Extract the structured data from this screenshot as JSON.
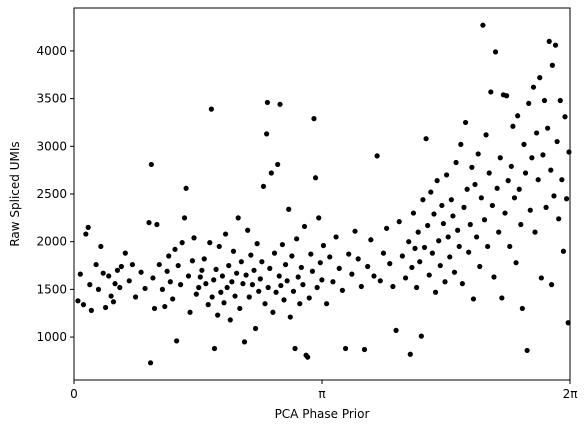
{
  "chart_data": {
    "type": "scatter",
    "title": "",
    "xlabel": "PCA Phase Prior",
    "ylabel": "Raw Spliced UMIs",
    "xlim": [
      0,
      6.283185307
    ],
    "ylim": [
      550,
      4450
    ],
    "x_ticks": [
      {
        "value": 0,
        "label": "0"
      },
      {
        "value": 3.141592654,
        "label": "π"
      },
      {
        "value": 6.283185307,
        "label": "2π"
      }
    ],
    "y_ticks": [
      {
        "value": 1000,
        "label": "1000"
      },
      {
        "value": 1500,
        "label": "1500"
      },
      {
        "value": 2000,
        "label": "2000"
      },
      {
        "value": 2500,
        "label": "2500"
      },
      {
        "value": 3000,
        "label": "3000"
      },
      {
        "value": 3500,
        "label": "3500"
      },
      {
        "value": 4000,
        "label": "4000"
      }
    ],
    "grid": false,
    "marker_color": "#000000",
    "points": [
      [
        0.05,
        1380
      ],
      [
        0.08,
        1660
      ],
      [
        0.12,
        1340
      ],
      [
        0.15,
        2080
      ],
      [
        0.18,
        2150
      ],
      [
        0.2,
        1550
      ],
      [
        0.22,
        1280
      ],
      [
        0.28,
        1760
      ],
      [
        0.31,
        1500
      ],
      [
        0.34,
        1950
      ],
      [
        0.37,
        1670
      ],
      [
        0.4,
        1310
      ],
      [
        0.44,
        1640
      ],
      [
        0.47,
        1430
      ],
      [
        0.5,
        1370
      ],
      [
        0.52,
        1560
      ],
      [
        0.55,
        1700
      ],
      [
        0.58,
        1520
      ],
      [
        0.6,
        1740
      ],
      [
        0.65,
        1880
      ],
      [
        0.7,
        1590
      ],
      [
        0.74,
        1760
      ],
      [
        0.78,
        1420
      ],
      [
        0.85,
        1680
      ],
      [
        0.9,
        1510
      ],
      [
        0.95,
        2200
      ],
      [
        0.97,
        730
      ],
      [
        0.98,
        2810
      ],
      [
        1.0,
        1620
      ],
      [
        1.02,
        1300
      ],
      [
        1.05,
        2180
      ],
      [
        1.08,
        1760
      ],
      [
        1.12,
        1500
      ],
      [
        1.15,
        1320
      ],
      [
        1.18,
        1690
      ],
      [
        1.2,
        1850
      ],
      [
        1.22,
        1580
      ],
      [
        1.25,
        1400
      ],
      [
        1.28,
        1920
      ],
      [
        1.3,
        960
      ],
      [
        1.32,
        1750
      ],
      [
        1.35,
        1550
      ],
      [
        1.37,
        1990
      ],
      [
        1.4,
        2250
      ],
      [
        1.42,
        2560
      ],
      [
        1.45,
        1640
      ],
      [
        1.47,
        1260
      ],
      [
        1.5,
        1800
      ],
      [
        1.52,
        2040
      ],
      [
        1.55,
        1450
      ],
      [
        1.58,
        1520
      ],
      [
        1.6,
        1630
      ],
      [
        1.62,
        1700
      ],
      [
        1.65,
        1820
      ],
      [
        1.67,
        1560
      ],
      [
        1.7,
        1340
      ],
      [
        1.72,
        1990
      ],
      [
        1.74,
        3390
      ],
      [
        1.75,
        1420
      ],
      [
        1.77,
        1600
      ],
      [
        1.78,
        880
      ],
      [
        1.8,
        1710
      ],
      [
        1.82,
        1230
      ],
      [
        1.84,
        1950
      ],
      [
        1.86,
        1470
      ],
      [
        1.88,
        1640
      ],
      [
        1.9,
        1360
      ],
      [
        1.92,
        2080
      ],
      [
        1.94,
        1520
      ],
      [
        1.96,
        1750
      ],
      [
        1.98,
        1180
      ],
      [
        2.0,
        1580
      ],
      [
        2.02,
        1900
      ],
      [
        2.04,
        1430
      ],
      [
        2.06,
        1670
      ],
      [
        2.08,
        2250
      ],
      [
        2.1,
        1300
      ],
      [
        2.12,
        1790
      ],
      [
        2.14,
        1560
      ],
      [
        2.16,
        950
      ],
      [
        2.18,
        1650
      ],
      [
        2.2,
        2120
      ],
      [
        2.22,
        1420
      ],
      [
        2.24,
        1860
      ],
      [
        2.26,
        1550
      ],
      [
        2.28,
        1700
      ],
      [
        2.3,
        1090
      ],
      [
        2.32,
        1980
      ],
      [
        2.34,
        1480
      ],
      [
        2.36,
        1610
      ],
      [
        2.38,
        1790
      ],
      [
        2.4,
        2580
      ],
      [
        2.42,
        1350
      ],
      [
        2.44,
        3130
      ],
      [
        2.45,
        3460
      ],
      [
        2.46,
        1520
      ],
      [
        2.48,
        1720
      ],
      [
        2.5,
        2720
      ],
      [
        2.52,
        1260
      ],
      [
        2.54,
        1880
      ],
      [
        2.56,
        1470
      ],
      [
        2.58,
        2810
      ],
      [
        2.6,
        1640
      ],
      [
        2.61,
        3440
      ],
      [
        2.62,
        1540
      ],
      [
        2.64,
        1970
      ],
      [
        2.66,
        1390
      ],
      [
        2.68,
        1760
      ],
      [
        2.7,
        1590
      ],
      [
        2.72,
        2340
      ],
      [
        2.74,
        1210
      ],
      [
        2.76,
        1850
      ],
      [
        2.78,
        1480
      ],
      [
        2.8,
        880
      ],
      [
        2.82,
        2030
      ],
      [
        2.84,
        1630
      ],
      [
        2.86,
        1350
      ],
      [
        2.88,
        1730
      ],
      [
        2.9,
        1550
      ],
      [
        2.92,
        2160
      ],
      [
        2.94,
        810
      ],
      [
        2.96,
        790
      ],
      [
        2.98,
        1410
      ],
      [
        3.0,
        1870
      ],
      [
        3.02,
        1690
      ],
      [
        3.04,
        3290
      ],
      [
        3.06,
        2670
      ],
      [
        3.08,
        1520
      ],
      [
        3.1,
        2250
      ],
      [
        3.12,
        1780
      ],
      [
        3.14,
        1600
      ],
      [
        3.16,
        1960
      ],
      [
        3.2,
        1350
      ],
      [
        3.24,
        1840
      ],
      [
        3.28,
        1580
      ],
      [
        3.32,
        2050
      ],
      [
        3.36,
        1720
      ],
      [
        3.4,
        1490
      ],
      [
        3.44,
        880
      ],
      [
        3.48,
        1870
      ],
      [
        3.52,
        1660
      ],
      [
        3.56,
        2110
      ],
      [
        3.6,
        1820
      ],
      [
        3.64,
        1530
      ],
      [
        3.68,
        870
      ],
      [
        3.72,
        1740
      ],
      [
        3.76,
        2020
      ],
      [
        3.8,
        1640
      ],
      [
        3.84,
        2900
      ],
      [
        3.88,
        1590
      ],
      [
        3.92,
        1880
      ],
      [
        3.96,
        2140
      ],
      [
        4.0,
        1770
      ],
      [
        4.04,
        1530
      ],
      [
        4.08,
        1070
      ],
      [
        4.12,
        2210
      ],
      [
        4.16,
        1850
      ],
      [
        4.2,
        1620
      ],
      [
        4.24,
        2000
      ],
      [
        4.26,
        820
      ],
      [
        4.28,
        1730
      ],
      [
        4.3,
        2300
      ],
      [
        4.32,
        1930
      ],
      [
        4.34,
        1520
      ],
      [
        4.36,
        2100
      ],
      [
        4.38,
        1790
      ],
      [
        4.4,
        1010
      ],
      [
        4.42,
        2440
      ],
      [
        4.44,
        1940
      ],
      [
        4.46,
        3080
      ],
      [
        4.48,
        2170
      ],
      [
        4.5,
        1650
      ],
      [
        4.52,
        2520
      ],
      [
        4.54,
        1880
      ],
      [
        4.56,
        2290
      ],
      [
        4.58,
        1470
      ],
      [
        4.6,
        2640
      ],
      [
        4.62,
        2010
      ],
      [
        4.64,
        1750
      ],
      [
        4.66,
        2380
      ],
      [
        4.68,
        2190
      ],
      [
        4.7,
        1580
      ],
      [
        4.72,
        2700
      ],
      [
        4.74,
        2050
      ],
      [
        4.76,
        1840
      ],
      [
        4.78,
        2440
      ],
      [
        4.8,
        2270
      ],
      [
        4.82,
        1680
      ],
      [
        4.84,
        2830
      ],
      [
        4.86,
        2120
      ],
      [
        4.88,
        1950
      ],
      [
        4.9,
        3020
      ],
      [
        4.92,
        1560
      ],
      [
        4.94,
        2360
      ],
      [
        4.96,
        3250
      ],
      [
        4.98,
        2550
      ],
      [
        5.0,
        1890
      ],
      [
        5.02,
        2180
      ],
      [
        5.04,
        2780
      ],
      [
        5.06,
        1400
      ],
      [
        5.08,
        2600
      ],
      [
        5.1,
        2050
      ],
      [
        5.12,
        2920
      ],
      [
        5.14,
        1740
      ],
      [
        5.16,
        2460
      ],
      [
        5.18,
        4270
      ],
      [
        5.2,
        2230
      ],
      [
        5.22,
        3120
      ],
      [
        5.24,
        1950
      ],
      [
        5.26,
        2720
      ],
      [
        5.28,
        3570
      ],
      [
        5.3,
        2380
      ],
      [
        5.32,
        1630
      ],
      [
        5.34,
        3990
      ],
      [
        5.36,
        2560
      ],
      [
        5.38,
        2100
      ],
      [
        5.4,
        2880
      ],
      [
        5.42,
        1410
      ],
      [
        5.44,
        3540
      ],
      [
        5.46,
        2300
      ],
      [
        5.48,
        3530
      ],
      [
        5.5,
        2640
      ],
      [
        5.52,
        1950
      ],
      [
        5.54,
        2790
      ],
      [
        5.56,
        3210
      ],
      [
        5.58,
        2460
      ],
      [
        5.6,
        1780
      ],
      [
        5.62,
        3320
      ],
      [
        5.64,
        2550
      ],
      [
        5.66,
        2180
      ],
      [
        5.68,
        1300
      ],
      [
        5.7,
        3020
      ],
      [
        5.72,
        2720
      ],
      [
        5.74,
        860
      ],
      [
        5.76,
        3450
      ],
      [
        5.78,
        2330
      ],
      [
        5.8,
        2880
      ],
      [
        5.82,
        3620
      ],
      [
        5.84,
        2100
      ],
      [
        5.86,
        3140
      ],
      [
        5.88,
        2650
      ],
      [
        5.9,
        3720
      ],
      [
        5.92,
        1620
      ],
      [
        5.94,
        2910
      ],
      [
        5.96,
        3480
      ],
      [
        5.98,
        2360
      ],
      [
        6.0,
        3190
      ],
      [
        6.02,
        4100
      ],
      [
        6.04,
        2750
      ],
      [
        6.05,
        1550
      ],
      [
        6.06,
        3850
      ],
      [
        6.08,
        2480
      ],
      [
        6.1,
        4060
      ],
      [
        6.12,
        3050
      ],
      [
        6.14,
        2240
      ],
      [
        6.16,
        3480
      ],
      [
        6.18,
        2650
      ],
      [
        6.2,
        1900
      ],
      [
        6.22,
        3310
      ],
      [
        6.24,
        2450
      ],
      [
        6.26,
        1150
      ],
      [
        6.27,
        2940
      ]
    ]
  }
}
